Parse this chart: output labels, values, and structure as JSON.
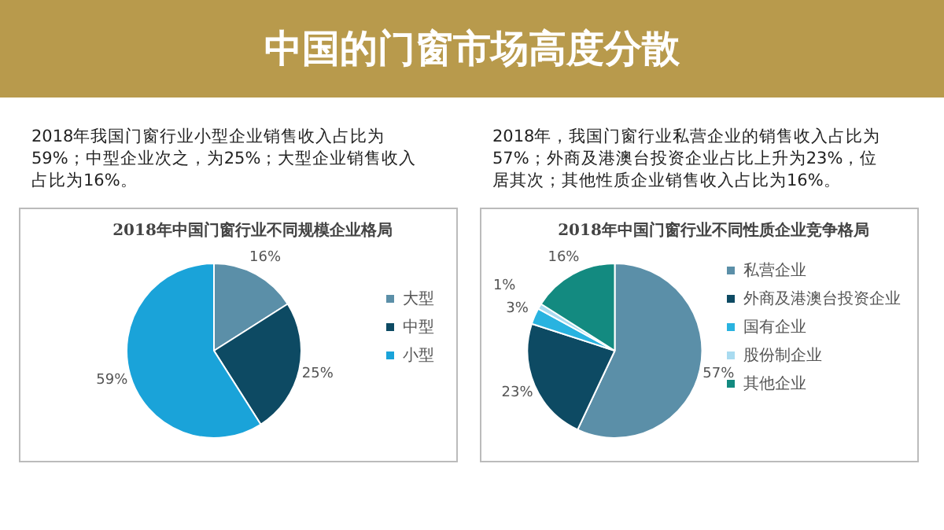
{
  "chart_data": [
    {
      "type": "pie",
      "title": "2018年中国门窗行业不同规模企业格局",
      "subtitle": "2018年我国门窗行业小型企业销售收入占比为59%；中型企业次之，为25%；大型企业销售收入占比为16%。",
      "annotations": [
        "中国的门窗市场高度分散"
      ],
      "categories": [
        "大型",
        "中型",
        "小型"
      ],
      "values": [
        16,
        25,
        59
      ],
      "value_labels": [
        "16%",
        "25%",
        "59%"
      ],
      "colors": [
        "#5b8fa8",
        "#0d4a63",
        "#1aa3d9"
      ],
      "legend": "right"
    },
    {
      "type": "pie",
      "title": "2018年中国门窗行业不同性质企业竞争格局",
      "subtitle": "2018年，我国门窗行业私营企业的销售收入占比为57%；外商及港澳台投资企业占比上升为23%，位居其次；其他性质企业销售收入占比为16%。",
      "categories": [
        "私营企业",
        "外商及港澳台投资企业",
        "国有企业",
        "股份制企业",
        "其他企业"
      ],
      "values": [
        57,
        23,
        3,
        1,
        16
      ],
      "value_labels": [
        "57%",
        "23%",
        "3%",
        "1%",
        "16%"
      ],
      "colors": [
        "#5b8fa8",
        "#0d4a63",
        "#29b3e0",
        "#a9dbf0",
        "#138a80"
      ],
      "legend": "right"
    }
  ]
}
